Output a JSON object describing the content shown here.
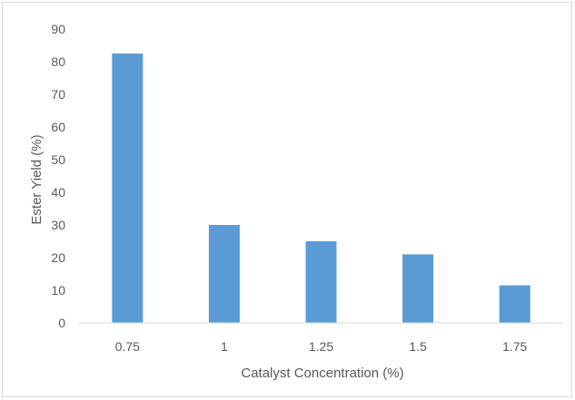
{
  "chart_data": {
    "type": "bar",
    "title": "",
    "xlabel": "Catalyst Concentration (%)",
    "ylabel": "Ester Yield (%)",
    "categories": [
      "0.75",
      "1",
      "1.25",
      "1.5",
      "1.75"
    ],
    "values": [
      82.5,
      30,
      25,
      21,
      11.5
    ],
    "ylim": [
      0,
      90
    ],
    "yticks": [
      "0",
      "10",
      "20",
      "30",
      "40",
      "50",
      "60",
      "70",
      "80",
      "90"
    ],
    "grid": false,
    "legend": "none",
    "bar_color": "#5b9bd5"
  }
}
